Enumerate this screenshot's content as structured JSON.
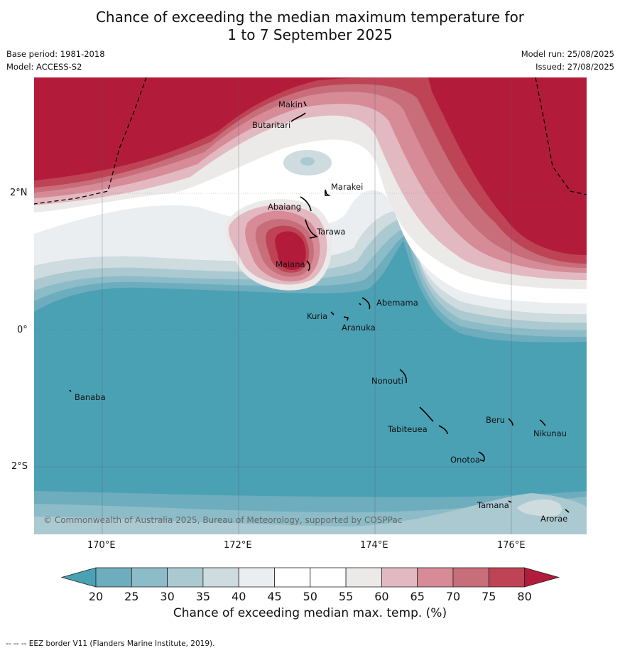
{
  "title_line1": "Chance of exceeding the median maximum temperature for",
  "title_line2": "1 to 7 September 2025",
  "base_period": "Base period: 1981-2018",
  "model": "Model: ACCESS-S2",
  "model_run": "Model run: 25/08/2025",
  "issued": "Issued: 27/08/2025",
  "copyright": "© Commonwealth of Australia 2025, Bureau of Meteorology, supported by COSPPac",
  "lat_labels": [
    "2°N",
    "0°",
    "2°S"
  ],
  "lon_labels": [
    "170°E",
    "172°E",
    "174°E",
    "176°E"
  ],
  "islands": {
    "makin": "Makin",
    "butaritari": "Butaritari",
    "marakei": "Marakei",
    "abaiang": "Abaiang",
    "tarawa": "Tarawa",
    "maiana": "Maiana",
    "abemama": "Abemama",
    "kuria": "Kuria",
    "aranuka": "Aranuka",
    "nonouti": "Nonouti",
    "banaba": "Banaba",
    "beru": "Beru",
    "nikunau": "Nikunau",
    "tabiteuea": "Tabiteuea",
    "onotoa": "Onotoa",
    "tamana": "Tamana",
    "arorae": "Arorae"
  },
  "colorbar": {
    "ticks": [
      "20",
      "25",
      "30",
      "35",
      "40",
      "45",
      "50",
      "55",
      "60",
      "65",
      "70",
      "75",
      "80"
    ],
    "colors": [
      "#4ba1b4",
      "#6eadbd",
      "#8cbcc8",
      "#abc9d1",
      "#cedbdf",
      "#ebeef1",
      "#ffffff",
      "#ffffff",
      "#eceae9",
      "#e3b9c1",
      "#d68b97",
      "#c86e7b",
      "#be4455",
      "#b21c3a"
    ],
    "title": "Chance of exceeding median max. temp. (%)"
  },
  "footnote": "--  --  -- EEZ border V11 (Flanders Marine Institute, 2019)."
}
